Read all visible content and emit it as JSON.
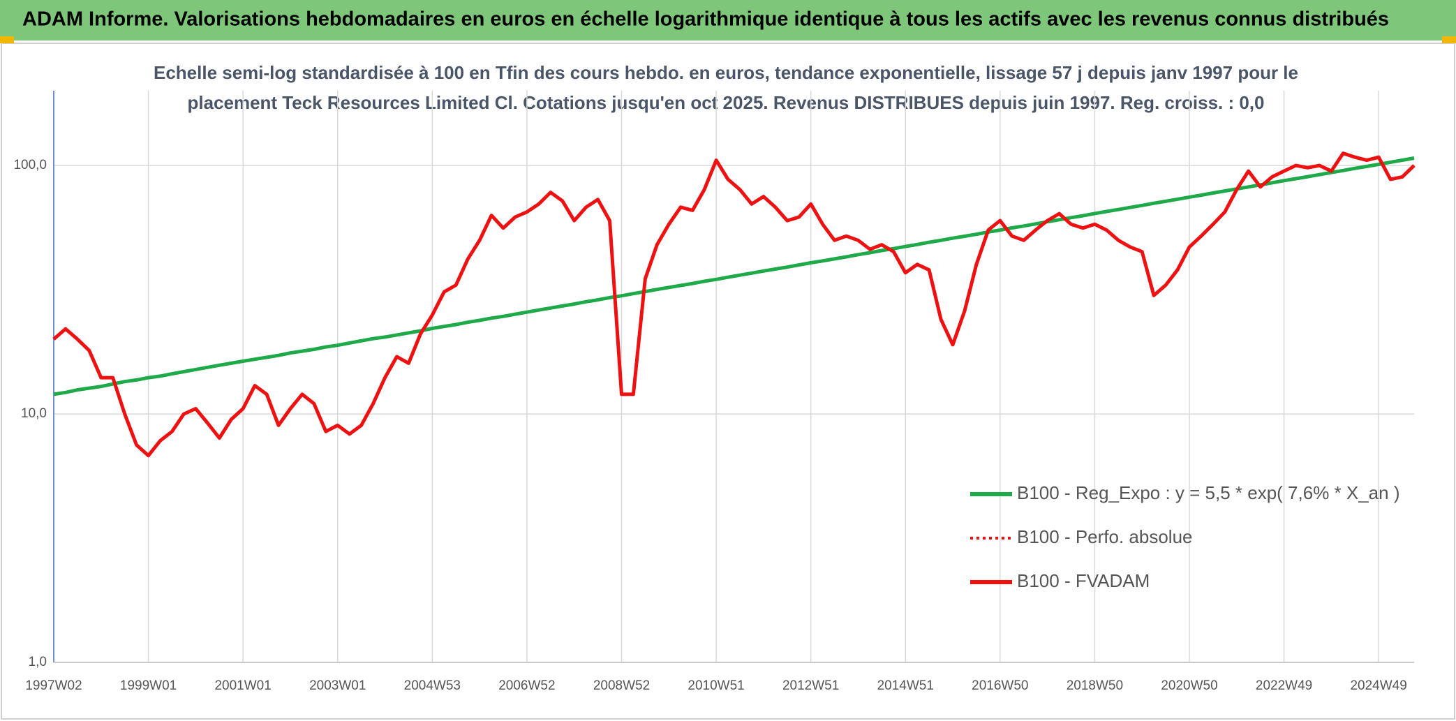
{
  "header": "ADAM Informe. Valorisations hebdomadaires en euros en échelle logarithmique identique à tous les actifs avec les revenus connus distribués",
  "chart_data": {
    "type": "line",
    "title": [
      "Echelle semi-log standardisée à 100 en Tfin des cours hebdo. en euros, tendance exponentielle, lissage 57 j depuis janv 1997 pour le",
      "placement Teck Resources Limited Cl. Cotations jusqu'en oct 2025. Revenus DISTRIBUES depuis juin 1997. Reg. croiss. : 0,0"
    ],
    "categories": [
      "1997W02",
      null,
      null,
      null,
      null,
      null,
      null,
      null,
      "1999W01",
      null,
      null,
      null,
      null,
      null,
      null,
      null,
      "2001W01",
      null,
      null,
      null,
      null,
      null,
      null,
      null,
      "2003W01",
      null,
      null,
      null,
      null,
      null,
      null,
      null,
      "2004W53",
      null,
      null,
      null,
      null,
      null,
      null,
      null,
      "2006W52",
      null,
      null,
      null,
      null,
      null,
      null,
      null,
      "2008W52",
      null,
      null,
      null,
      null,
      null,
      null,
      null,
      "2010W51",
      null,
      null,
      null,
      null,
      null,
      null,
      null,
      "2012W51",
      null,
      null,
      null,
      null,
      null,
      null,
      null,
      "2014W51",
      null,
      null,
      null,
      null,
      null,
      null,
      null,
      "2016W50",
      null,
      null,
      null,
      null,
      null,
      null,
      null,
      "2018W50",
      null,
      null,
      null,
      null,
      null,
      null,
      null,
      "2020W50",
      null,
      null,
      null,
      null,
      null,
      null,
      null,
      "2022W49",
      null,
      null,
      null,
      null,
      null,
      null,
      null,
      "2024W49",
      null,
      null,
      null
    ],
    "log_scale": true,
    "ylim": [
      1,
      200
    ],
    "yticks": [
      {
        "value": 1,
        "label": "1,0"
      },
      {
        "value": 10,
        "label": "10,0"
      },
      {
        "value": 100,
        "label": "100,0"
      }
    ],
    "grid": true,
    "legend": "right",
    "series": [
      {
        "name": "B100 - Reg_Expo : y = 5,5 * exp( 7,6% *  X_an )",
        "color": "#1faa4a",
        "style": "solid",
        "values": [
          12.0,
          12.2,
          12.5,
          12.7,
          12.9,
          13.2,
          13.5,
          13.7,
          14.0,
          14.2,
          14.5,
          14.8,
          15.1,
          15.4,
          15.7,
          16.0,
          16.3,
          16.6,
          16.9,
          17.2,
          17.6,
          17.9,
          18.2,
          18.6,
          18.9,
          19.3,
          19.7,
          20.1,
          20.4,
          20.8,
          21.2,
          21.6,
          22.1,
          22.5,
          22.9,
          23.4,
          23.8,
          24.3,
          24.7,
          25.2,
          25.7,
          26.2,
          26.7,
          27.2,
          27.7,
          28.3,
          28.8,
          29.4,
          29.9,
          30.5,
          31.1,
          31.7,
          32.3,
          32.9,
          33.5,
          34.2,
          34.8,
          35.5,
          36.2,
          36.9,
          37.6,
          38.3,
          39.0,
          39.8,
          40.6,
          41.3,
          42.1,
          42.9,
          43.8,
          44.6,
          45.5,
          46.3,
          47.2,
          48.1,
          49.1,
          50.0,
          51.0,
          51.9,
          52.9,
          54.0,
          55.0,
          56.1,
          57.1,
          58.2,
          59.4,
          60.5,
          61.7,
          62.8,
          64.1,
          65.3,
          66.5,
          67.8,
          69.1,
          70.5,
          71.8,
          73.2,
          74.6,
          76.0,
          77.5,
          79.0,
          80.5,
          82.0,
          83.6,
          85.2,
          86.9,
          88.5,
          90.2,
          91.9,
          93.7,
          95.5,
          97.4,
          99.2,
          101.1,
          103.1,
          105.1,
          107.1
        ]
      },
      {
        "name": "B100 - Perfo. absolue",
        "color": "#ee1111",
        "style": "dotted",
        "values": [
          20,
          22,
          20,
          18,
          14,
          14,
          10,
          7.5,
          6.8,
          7.8,
          8.5,
          10,
          10.5,
          9.2,
          8,
          9.5,
          10.5,
          13,
          12,
          9,
          10.5,
          12,
          11,
          8.5,
          9,
          8.3,
          9,
          11,
          14,
          17,
          16,
          21,
          25,
          31,
          33,
          42,
          50,
          63,
          56,
          62,
          65,
          70,
          78,
          72,
          60,
          68,
          73,
          60,
          12,
          12,
          35,
          48,
          58,
          68,
          66,
          80,
          105,
          88,
          80,
          70,
          75,
          68,
          60,
          62,
          70,
          58,
          50,
          52,
          50,
          46,
          48,
          45,
          37,
          40,
          38,
          24,
          19,
          26,
          40,
          55,
          60,
          52,
          50,
          55,
          60,
          64,
          58,
          56,
          58,
          55,
          50,
          47,
          45,
          30,
          33,
          38,
          47,
          52,
          58,
          65,
          80,
          95,
          82,
          90,
          95,
          100,
          98,
          100,
          95,
          112,
          108,
          105,
          108,
          88,
          90,
          100
        ]
      },
      {
        "name": "B100 - FVADAM",
        "color": "#ee1111",
        "style": "solid",
        "values": [
          20,
          22,
          20,
          18,
          14,
          14,
          10,
          7.5,
          6.8,
          7.8,
          8.5,
          10,
          10.5,
          9.2,
          8,
          9.5,
          10.5,
          13,
          12,
          9,
          10.5,
          12,
          11,
          8.5,
          9,
          8.3,
          9,
          11,
          14,
          17,
          16,
          21,
          25,
          31,
          33,
          42,
          50,
          63,
          56,
          62,
          65,
          70,
          78,
          72,
          60,
          68,
          73,
          60,
          12,
          12,
          35,
          48,
          58,
          68,
          66,
          80,
          105,
          88,
          80,
          70,
          75,
          68,
          60,
          62,
          70,
          58,
          50,
          52,
          50,
          46,
          48,
          45,
          37,
          40,
          38,
          24,
          19,
          26,
          40,
          55,
          60,
          52,
          50,
          55,
          60,
          64,
          58,
          56,
          58,
          55,
          50,
          47,
          45,
          30,
          33,
          38,
          47,
          52,
          58,
          65,
          80,
          95,
          82,
          90,
          95,
          100,
          98,
          100,
          95,
          112,
          108,
          105,
          108,
          88,
          90,
          100
        ]
      }
    ]
  }
}
